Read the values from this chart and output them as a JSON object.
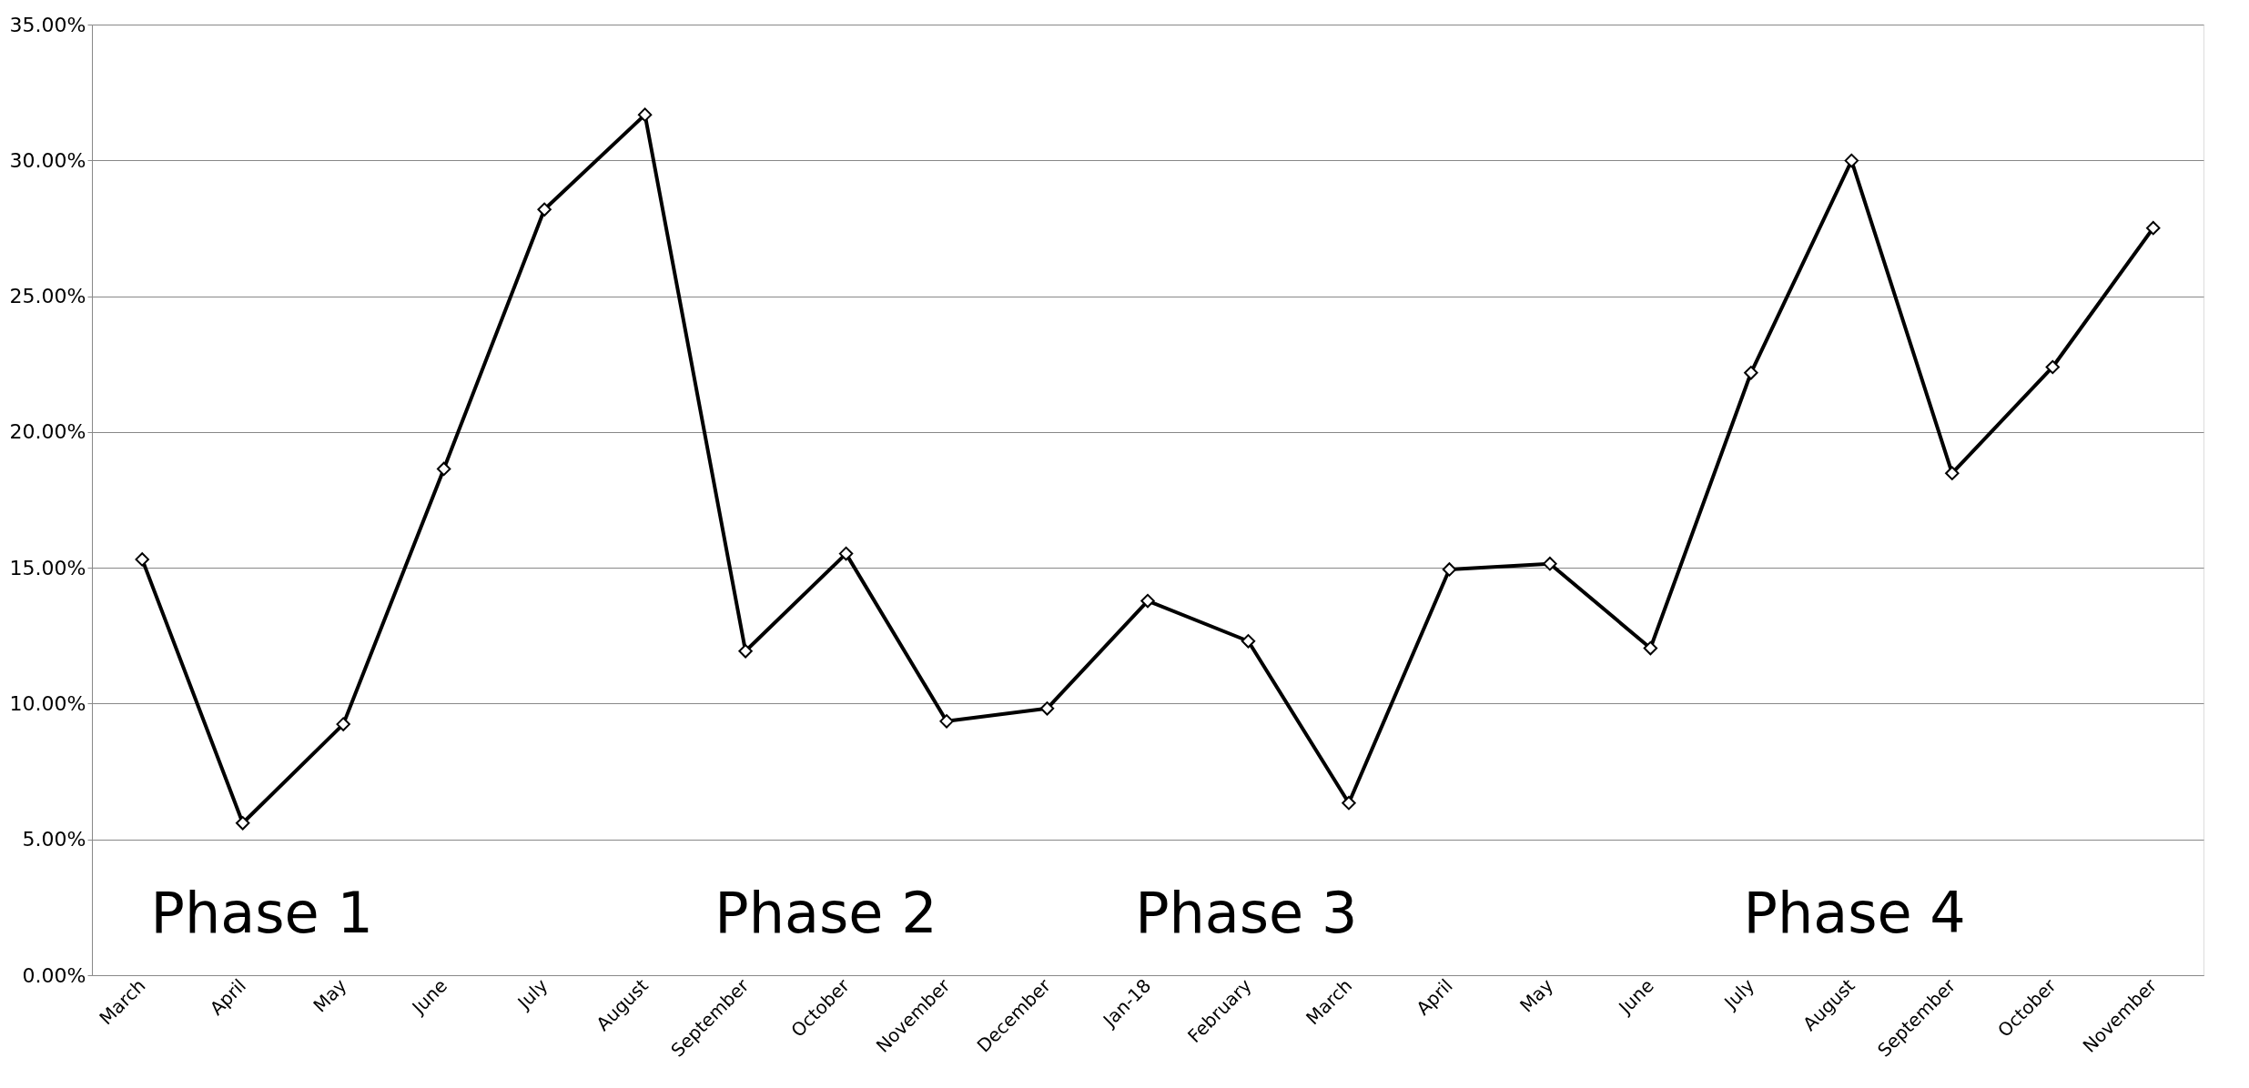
{
  "chart_data": {
    "type": "line",
    "categories": [
      "March",
      "April",
      "May",
      "June",
      "July",
      "August",
      "September",
      "October",
      "November",
      "December",
      "Jan-18",
      "February",
      "March",
      "April",
      "May",
      "June",
      "July",
      "August",
      "September",
      "October",
      "November"
    ],
    "series": [
      {
        "color": "#000000",
        "values": [
          15.31,
          5.6,
          9.24,
          18.64,
          28.19,
          31.68,
          11.93,
          15.52,
          9.35,
          9.82,
          13.78,
          12.3,
          6.34,
          14.94,
          15.15,
          12.04,
          22.18,
          29.99,
          18.48,
          22.39,
          27.51
        ]
      }
    ],
    "ylim": [
      0,
      35
    ],
    "yticks": [
      {
        "value": 0,
        "label": "0.00%"
      },
      {
        "value": 5,
        "label": "5.00%"
      },
      {
        "value": 10,
        "label": "10.00%"
      },
      {
        "value": 15,
        "label": "15.00%"
      },
      {
        "value": 20,
        "label": "20.00%"
      },
      {
        "value": 25,
        "label": "25.00%"
      },
      {
        "value": 30,
        "label": "30.00%"
      },
      {
        "value": 35,
        "label": "35.00%"
      }
    ],
    "grid": "y",
    "marker": "diamond",
    "line_style": "solid",
    "annotations": [
      "Phase 1",
      "Phase 2",
      "Phase 3",
      "Phase 4"
    ]
  }
}
